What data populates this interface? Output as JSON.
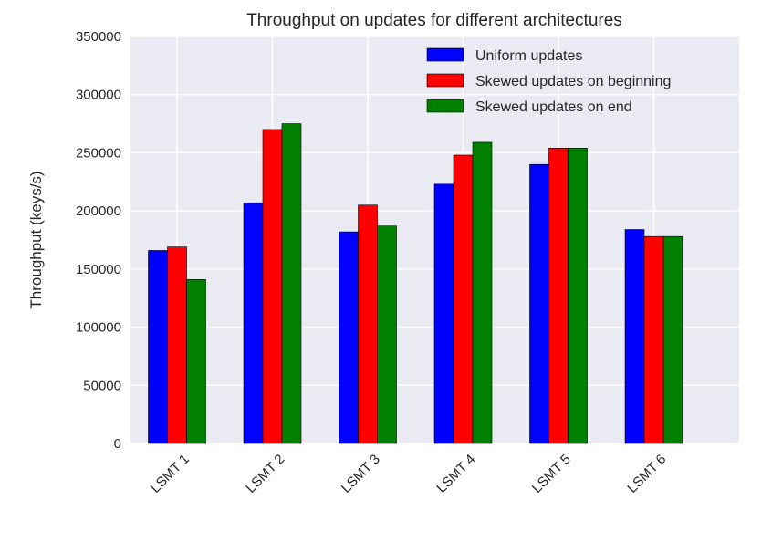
{
  "chart_data": {
    "type": "bar",
    "title": "Throughput on updates for different architectures",
    "xlabel": "",
    "ylabel": "Throughput (keys/s)",
    "ylim": [
      0,
      350000
    ],
    "yticks": [
      0,
      50000,
      100000,
      150000,
      200000,
      250000,
      300000,
      350000
    ],
    "ytick_labels": [
      "0",
      "50000",
      "100000",
      "150000",
      "200000",
      "250000",
      "300000",
      "350000"
    ],
    "categories": [
      "LSMT 1",
      "LSMT 2",
      "LSMT 3",
      "LSMT 4",
      "LSMT 5",
      "LSMT 6"
    ],
    "series": [
      {
        "name": "Uniform updates",
        "color": "#0000ff",
        "values": [
          166000,
          207000,
          182000,
          223000,
          240000,
          184000
        ]
      },
      {
        "name": "Skewed updates on beginning",
        "color": "#ff0000",
        "values": [
          169000,
          270000,
          205000,
          248000,
          254000,
          178000
        ]
      },
      {
        "name": "Skewed updates on end",
        "color": "#008000",
        "values": [
          141000,
          275000,
          187000,
          259000,
          254000,
          178000
        ]
      }
    ],
    "grid": true,
    "legend_position": "top-right",
    "background": "#eaeaf2"
  }
}
